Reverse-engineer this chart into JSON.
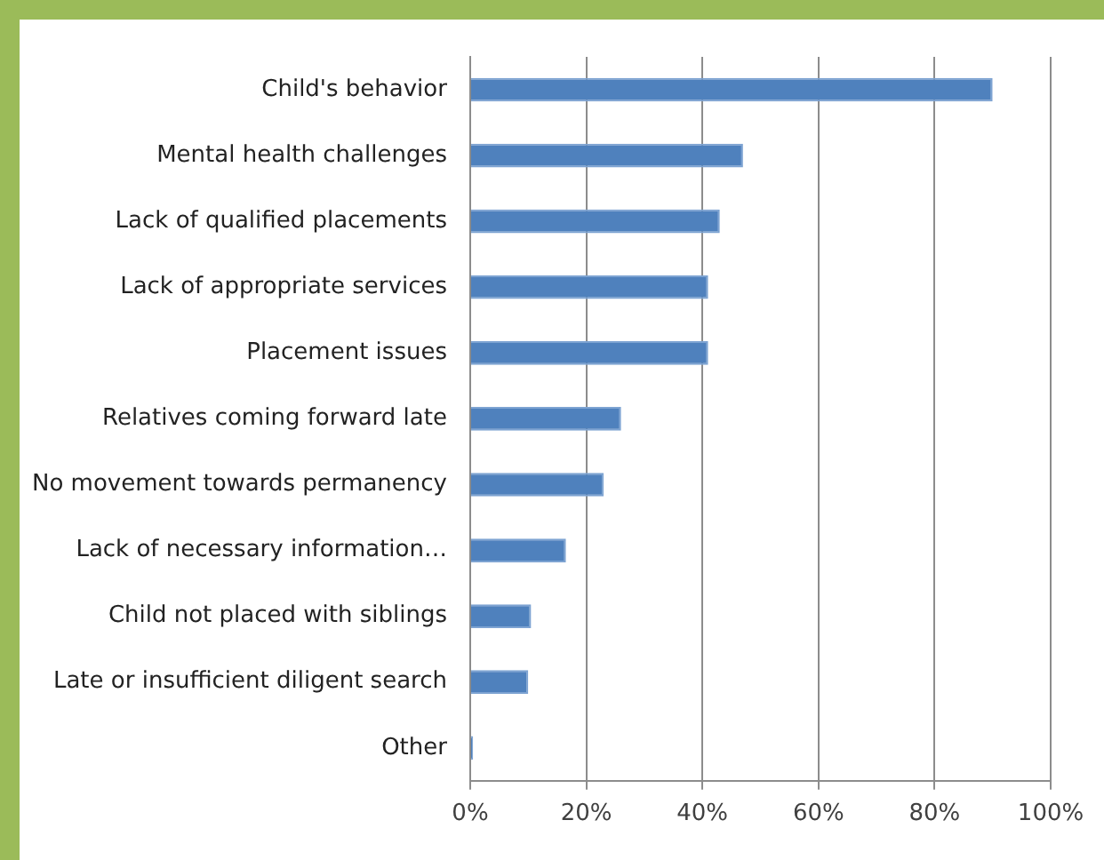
{
  "chart_data": {
    "type": "bar",
    "orientation": "horizontal",
    "categories": [
      "Child's behavior",
      "Mental health challenges",
      "Lack of qualified placements",
      "Lack of appropriate services",
      "Placement issues",
      "Relatives coming forward late",
      "No movement towards permanency",
      "Lack of necessary information…",
      "Child not placed with siblings",
      "Late or insufficient diligent search",
      "Other"
    ],
    "values": [
      0.9,
      0.47,
      0.43,
      0.41,
      0.41,
      0.26,
      0.23,
      0.165,
      0.105,
      0.1,
      0.005
    ],
    "color": "#4f81bd",
    "xlim": [
      0,
      1
    ],
    "xticks": [
      {
        "value": 0,
        "label": "0%"
      },
      {
        "value": 0.2,
        "label": "20%"
      },
      {
        "value": 0.4,
        "label": "40%"
      },
      {
        "value": 0.6,
        "label": "60%"
      },
      {
        "value": 0.8,
        "label": "80%"
      },
      {
        "value": 1,
        "label": "100%"
      }
    ],
    "grid": "x",
    "legend": false
  }
}
